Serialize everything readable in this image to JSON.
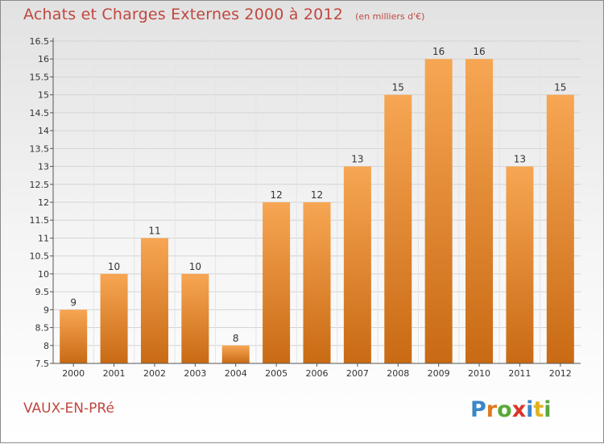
{
  "title": "Achats et Charges Externes 2000 à 2012",
  "subtitle": "(en milliers d'€)",
  "commune": "VAUX-EN-PRé",
  "logo_text": "Proxiti",
  "colors": {
    "bar_light": "#f7a653",
    "bar_dark": "#c96a14",
    "title": "#c0473f",
    "axis": "#555555"
  },
  "chart_data": {
    "type": "bar",
    "title": "Achats et Charges Externes 2000 à 2012",
    "subtitle": "(en milliers d'€)",
    "categories": [
      "2000",
      "2001",
      "2002",
      "2003",
      "2004",
      "2005",
      "2006",
      "2007",
      "2008",
      "2009",
      "2010",
      "2011",
      "2012"
    ],
    "values": [
      9,
      10,
      11,
      10,
      8,
      12,
      12,
      13,
      15,
      16,
      16,
      13,
      15
    ],
    "data_labels": [
      "9",
      "10",
      "11",
      "10",
      "8",
      "12",
      "12",
      "13",
      "15",
      "16",
      "16",
      "13",
      "15"
    ],
    "yticks": [
      "7.5",
      "8",
      "8.5",
      "9",
      "9.5",
      "10",
      "10.5",
      "11",
      "11.5",
      "12",
      "12.5",
      "13",
      "13.5",
      "14",
      "14.5",
      "15",
      "15.5",
      "16",
      "16.5"
    ],
    "ylim": [
      7.5,
      16.5
    ],
    "grid": true,
    "xlabel": "",
    "ylabel": ""
  }
}
